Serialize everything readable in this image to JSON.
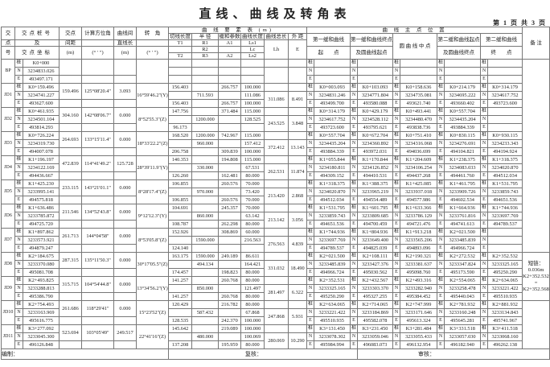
{
  "title": "直线、曲线及转角表",
  "page_info": "第 1 页  共 3 页",
  "headers": {
    "jd": [
      "交",
      "点",
      "号"
    ],
    "coord": [
      "交点桩号",
      "及",
      "交点坐标"
    ],
    "dist": [
      "交点",
      "间距",
      "(m)"
    ],
    "azimuth": [
      "计算方位角",
      "",
      "(° ′ ″)"
    ],
    "line": [
      "曲线间",
      "直线长",
      "(m)"
    ],
    "angle": [
      "转　角",
      "",
      "(° ′ ″)"
    ],
    "curve_title": "曲 线 要 素 表 (m)",
    "curve_cols": [
      "切线长度",
      "半 径",
      "缓和参数",
      "曲线长度",
      "曲线总长",
      "外 距"
    ],
    "curve_row2": [
      "T1",
      "R1",
      "A1",
      "Ls1",
      "Lh",
      "E"
    ],
    "curve_row3": [
      "R2",
      "Lc"
    ],
    "curve_row4": [
      "T2",
      "R3",
      "A2",
      "Ls2"
    ],
    "points_title": "曲 线 主 点 位 置",
    "points_top": [
      "第一缓和曲线",
      "第一缓和曲线终点",
      "圆 曲 线 中 点",
      "第二缓和曲线起点",
      "第二缓和曲线"
    ],
    "points_bottom": [
      "起　　点",
      "及圆曲线起点",
      "及圆曲线终点",
      "终　　点"
    ],
    "remarks": "备 注"
  },
  "labels": {
    "stake": "桩",
    "n": "N",
    "e": "E"
  },
  "rows": [
    {
      "jd": "BP",
      "station": "K0+000",
      "north": "3234833.026",
      "east": "493497.171",
      "distance": "",
      "azimuth": "",
      "line_length": "",
      "angle": "",
      "curve": {
        "t1": "",
        "r1": "",
        "a1": "",
        "ls1": "",
        "r2": "",
        "lc": "",
        "lh": "",
        "e": "",
        "t2": "",
        "r3": "",
        "a2": "",
        "ls2": ""
      },
      "points": [
        [
          "",
          "",
          ""
        ],
        [
          "",
          "",
          ""
        ],
        [
          "",
          "",
          ""
        ],
        [
          "",
          "",
          ""
        ],
        [
          "",
          "",
          ""
        ]
      ]
    },
    {
      "jd": "JD1",
      "station": "K0+159.496",
      "north": "3234741.227",
      "east": "493627.600",
      "distance": "159.496",
      "azimuth": "125°08'20.4\"",
      "line_length": "3.093",
      "angle": "16°59'46.2\"(Y)",
      "curve": {
        "t1": "156.403",
        "r1": "",
        "a1": "266.757",
        "ls1": "100.000",
        "r2": "711.593",
        "lc": "111.086",
        "lh": "311.086",
        "e": "8.491",
        "t2": "156.403",
        "r3": "",
        "a2": "266.757",
        "ls2": "100.000"
      },
      "points": [
        [
          "K0+003.093",
          "3234831.246",
          "493499.700"
        ],
        [
          "K0+103.093",
          "3234771.804",
          "493580.088"
        ],
        [
          "K0+158.636",
          "3234735.081",
          "493621.740"
        ],
        [
          "K0+214.179",
          "3234695.222",
          "493660.402"
        ],
        [
          "K0+314.179",
          "3234617.752",
          "493723.600"
        ]
      ]
    },
    {
      "jd": "JD2",
      "station": "K0+461.935",
      "north": "3234501.104",
      "east": "493814.293",
      "distance": "304.160",
      "azimuth": "142°08'06.7\"",
      "line_length": "0.000",
      "angle": "8°52'55.3\"(Z)",
      "curve": {
        "t1": "147.756",
        "r1": "",
        "a1": "371.484",
        "ls1": "115.000",
        "r2": "1200.000",
        "lc": "128.525",
        "lh": "243.525",
        "e": "3.848",
        "t2": "96.173",
        "r3": "",
        "a2": "",
        "ls2": ""
      },
      "points": [
        [
          "K0+314.179",
          "3234617.752",
          "493723.600"
        ],
        [
          "K0+429.179",
          "3234528.112",
          "493795.621"
        ],
        [
          "K0+493.441",
          "3234480.470",
          "493838.736"
        ],
        [
          "K0+557.704",
          "3234435.204",
          "493884.339"
        ],
        [
          "",
          "",
          ""
        ]
      ]
    },
    {
      "jd": "JD3",
      "station": "K0+726.224",
      "north": "3234319.730",
      "east": "494007.078",
      "distance": "264.693",
      "azimuth": "133°15'11.4\"",
      "line_length": "0.000",
      "angle": "18°33'22.2\"(Z)",
      "curve": {
        "t1": "168.520",
        "r1": "1200.000",
        "a1": "742.967",
        "ls1": "115.000",
        "r2": "960.000",
        "lc": "157.412",
        "lh": "372.412",
        "e": "13.143",
        "t2": "206.758",
        "r3": "",
        "a2": "309.839",
        "ls2": "100.000"
      },
      "points": [
        [
          "K0+557.704",
          "3234435.204",
          "493884.339"
        ],
        [
          "K0+672.704",
          "3234360.892",
          "493972.031"
        ],
        [
          "K0+751.410",
          "3234316.068",
          "494036.699"
        ],
        [
          "K0+830.115",
          "3234276.691",
          "494104.821"
        ],
        [
          "K0+930.115",
          "3234233.343",
          "494194.924"
        ]
      ]
    },
    {
      "jd": "JD4",
      "station": "K1+196.197",
      "north": "3234122.169",
      "east": "494436.667",
      "distance": "472.839",
      "azimuth": "114°41'49.2\"",
      "line_length": "125.728",
      "angle": "28°39'11.9\"(Y)",
      "curve": {
        "t1": "140.353",
        "r1": "",
        "a1": "194.808",
        "ls1": "115.000",
        "r2": "330.000",
        "lc": "67.531",
        "lh": "262.531",
        "e": "11.874",
        "t2": "126.260",
        "r3": "",
        "a2": "162.481",
        "ls2": "80.000"
      },
      "points": [
        [
          "K1+055.844",
          "3234180.811",
          "494309.152"
        ],
        [
          "K1+170.844",
          "3234126.852",
          "494410.531"
        ],
        [
          "K1+204.609",
          "3234106.254",
          "494437.268"
        ],
        [
          "K1+238.375",
          "3234083.033",
          "494461.760"
        ],
        [
          "K1+318.375",
          "3234020.870",
          "494512.034"
        ]
      ]
    },
    {
      "jd": "JD5",
      "station": "K1+425.230",
      "north": "3233995.141",
      "east": "494575.818",
      "distance": "233.115",
      "azimuth": "143°21'01.1\"",
      "line_length": "0.000",
      "angle": "8°28'17.4\"(Z)",
      "curve": {
        "t1": "106.855",
        "r1": "",
        "a1": "260.576",
        "ls1": "70.000",
        "r2": "970.000",
        "lc": "73.420",
        "lh": "213.420",
        "e": "2.868",
        "t2": "106.855",
        "r3": "",
        "a2": "260.576",
        "ls2": "70.000"
      },
      "points": [
        [
          "K1+318.375",
          "3234020.870",
          "494512.034"
        ],
        [
          "K1+388.375",
          "3233965.219",
          "494554.489"
        ],
        [
          "K1+425.085",
          "3233937.018",
          "494577.986"
        ],
        [
          "K1+461.795",
          "3233909.726",
          "494602.534"
        ],
        [
          "K1+531.795",
          "3233859.743",
          "494651.536"
        ]
      ]
    },
    {
      "jd": "JD6",
      "station": "K1+636.486",
      "north": "3233785.872",
      "east": "494725.720",
      "distance": "211.546",
      "azimuth": "134°52'43.8\"",
      "line_length": "0.000",
      "angle": "9°12'12.3\"(Y)",
      "curve": {
        "t1": "104.691",
        "r1": "",
        "a1": "245.357",
        "ls1": "70.000",
        "r2": "860.000",
        "lc": "63.142",
        "lh": "213.142",
        "e": "3.056",
        "t2": "108.787",
        "r3": "",
        "a2": "262.298",
        "ls2": "80.000"
      },
      "points": [
        [
          "K1+531.795",
          "3233859.743",
          "494651.536"
        ],
        [
          "K1+601.795",
          "3233809.685",
          "494700.459"
        ],
        [
          "K1+633.366",
          "3233786.129",
          "494721.476"
        ],
        [
          "K1+664.936",
          "3233761.816",
          "494741.613"
        ],
        [
          "K1+744.936",
          "3233697.769",
          "494789.537"
        ]
      ]
    },
    {
      "jd": "JD7",
      "station": "K1+897.862",
      "north": "3233573.921",
      "east": "494879.247",
      "distance": "261.713",
      "azimuth": "144°04'58\"",
      "line_length": "0.000",
      "angle": "8°53'05.8\"(Z)",
      "curve": {
        "t1": "152.926",
        "r1": "",
        "a1": "308.869",
        "ls1": "60.000",
        "r2": "1590.000",
        "lc": "216.563",
        "lh": "276.563",
        "e": "4.839",
        "t2": "124.140",
        "r3": "",
        "a2": "",
        "ls2": ""
      },
      "points": [
        [
          "K1+744.936",
          "3233697.769",
          "494789.537"
        ],
        [
          "K1+804.936",
          "3233649.400",
          "494825.039"
        ],
        [
          "K1+913.218",
          "3233565.206",
          "494893.096"
        ],
        [
          "K2+021.500",
          "3233485.839",
          "494966.724"
        ],
        [
          "",
          "",
          ""
        ]
      ]
    },
    {
      "jd": "JD8",
      "station": "K2+184.675",
      "north": "3233370.080",
      "east": "495081.708",
      "distance": "287.315",
      "azimuth": "135°11'50.3\"",
      "line_length": "0.000",
      "angle": "30°17'05.5\"(Z)",
      "curve": {
        "t1": "163.175",
        "r1": "1590.000",
        "a1": "249.189",
        "ls1": "86.611",
        "r2": "494.134",
        "lc": "164.421",
        "lh": "331.032",
        "e": "18.490",
        "t2": "174.457",
        "r3": "",
        "a2": "198.823",
        "ls2": "80.000"
      },
      "points": [
        [
          "K2+021.500",
          "3233485.839",
          "494966.724"
        ],
        [
          "K2+108.111",
          "3233427.376",
          "495030.562"
        ],
        [
          "K2+190.321",
          "3233381.637",
          "495098.760"
        ],
        [
          "K2+272.532",
          "3233347.824",
          "495173.590"
        ],
        [
          "K2+352.532",
          "3233325.165",
          "495250.290"
        ]
      ]
    },
    {
      "jd": "JD9",
      "station": "K2+493.825",
      "north": "3233288.813",
      "east": "495386.790",
      "distance": "315.715",
      "azimuth": "104°54'44.8\"",
      "line_length": "0.000",
      "angle": "13°34'56.2\"(Y)",
      "curve": {
        "t1": "141.257",
        "r1": "",
        "a1": "260.768",
        "ls1": "80.000",
        "r2": "850.000",
        "lc": "121.497",
        "lh": "281.497",
        "e": "6.322",
        "t2": "141.257",
        "r3": "",
        "a2": "260.768",
        "ls2": "80.000"
      },
      "points": [
        [
          "K2+352.531",
          "3233325.165",
          "495250.290"
        ],
        [
          "K2+432.567",
          "3233303.370",
          "495327.255"
        ],
        [
          "K2+493.316",
          "3233282.940",
          "495384.452"
        ],
        [
          "K2+554.065",
          "3233258.478",
          "495440.043"
        ],
        [
          "K2+634.065",
          "3233221.422",
          "495510.935"
        ]
      ]
    },
    {
      "jd": "JD10",
      "station": "K2+754.493",
      "north": "3233163.969",
      "east": "495616.775",
      "distance": "261.686",
      "azimuth": "118°29'41\"",
      "line_length": "0.000",
      "angle": "15°23'52\"(Z)",
      "curve": {
        "t1": "120.429",
        "r1": "",
        "a1": "216.782",
        "ls1": "80.000",
        "r2": "587.432",
        "lc": "67.868",
        "lh": "247.868",
        "e": "5.931",
        "t2": "128.535",
        "r3": "",
        "a2": "242.370",
        "ls2": "100.000"
      },
      "points": [
        [
          "K2+634.065",
          "3233221.422",
          "495510.935"
        ],
        [
          "K2+714.065",
          "3233184.869",
          "495582.078"
        ],
        [
          "K2+747.999",
          "3233171.646",
          "495613.324"
        ],
        [
          "K2+781.932",
          "3233160.248",
          "495645.281"
        ],
        [
          "K2+881.932",
          "3233134.843",
          "495741.967"
        ]
      ]
    },
    {
      "jd": "JD11",
      "station": "K3+277.092",
      "north": "3233045.300",
      "east": "496126.848",
      "distance": "523.694",
      "azimuth": "103°05'49\"",
      "line_length": "249.517",
      "angle": "22°41'16\"(Z)",
      "curve": {
        "t1": "145.642",
        "r1": "",
        "a1": "219.089",
        "ls1": "100.000",
        "r2": "480.000",
        "lc": "100.069",
        "lh": "280.069",
        "e": "10.290",
        "t2": "137.208",
        "r3": "",
        "a2": "195.959",
        "ls2": "80.000"
      },
      "points": [
        [
          "K3+131.450",
          "3233078.302",
          "495984.994"
        ],
        [
          "K3+231.450",
          "3233059.046",
          "496083.073"
        ],
        [
          "K3+281.484",
          "3233055.433",
          "496132.954"
        ],
        [
          "K3+331.518",
          "3233057.030",
          "496182.940"
        ],
        [
          "K3+411.518",
          "3233068.160",
          "496262.138"
        ]
      ]
    }
  ],
  "remark": "短链：0.036m K2+352.532 = K2+352.568",
  "footer": {
    "prepared": "编制：",
    "checked": "复核：",
    "reviewed": "审核："
  }
}
